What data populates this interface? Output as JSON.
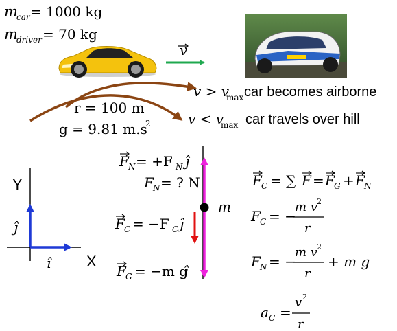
{
  "given": {
    "m_car": "= 1000 kg",
    "m_driver": "= 70 kg",
    "radius": "r = 100 m",
    "gravity": "g = 9.81 m.s",
    "gravity_exp": "-2"
  },
  "velocity_label": "v",
  "cases": {
    "airborne_cond_lhs": "v > v",
    "airborne_cond_sub": "max",
    "airborne_text": "car becomes airborne",
    "over_hill_cond_lhs": "v < v",
    "over_hill_cond_sub": "max",
    "over_hill_text": "car travels over hill"
  },
  "axes": {
    "y_label": "Y",
    "x_label": "X",
    "j_hat": "ĵ",
    "i_hat": "î"
  },
  "forces": {
    "normal_vec": "= +F",
    "normal_mag": "= ? N",
    "centripetal_vec": "= −F",
    "gravity_vec": "= −m g",
    "mass_label": "m"
  },
  "equations": {
    "eq1": "= ∑",
    "eq2_lhs": "= −",
    "eq3_lhs": "= −",
    "eq3_tail": "+ m g",
    "eq4_lhs": "=",
    "num_mv2": "m v",
    "num_v2": "v",
    "den_r": "r"
  },
  "colors": {
    "velocity_arrow": "#1fa84f",
    "path_arrow": "#8b4513",
    "axis_arrow": "#1f3ad6",
    "force_line": "#ee22dd",
    "centripetal_arrow": "#e11010",
    "car_body": "#f4c20d"
  },
  "icons": [
    "yellow-sports-car-icon",
    "rally-car-photo-icon"
  ]
}
